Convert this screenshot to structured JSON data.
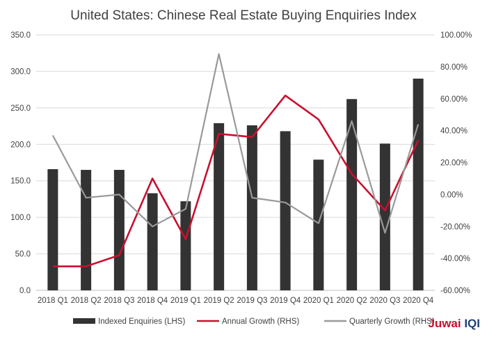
{
  "chart_data": {
    "type": "bar",
    "title": "United States: Chinese Real Estate Buying Enquiries Index",
    "categories": [
      "2018 Q1",
      "2018 Q2",
      "2018 Q3",
      "2018 Q4",
      "2019 Q1",
      "2019 Q2",
      "2019 Q3",
      "2019 Q4",
      "2020 Q1",
      "2020 Q2",
      "2020 Q3",
      "2020 Q4"
    ],
    "series": [
      {
        "name": "Indexed Enquiries (LHS)",
        "type": "bar",
        "axis": "left",
        "color": "#333333",
        "values": [
          166,
          165,
          165,
          133,
          122,
          229,
          226,
          218,
          179,
          262,
          201,
          290
        ]
      },
      {
        "name": "Annual Growth (RHS)",
        "type": "line",
        "axis": "right",
        "color": "#c8102e",
        "values": [
          -45,
          -45,
          -38,
          10,
          -28,
          38,
          36,
          62,
          47,
          13,
          -10,
          34
        ]
      },
      {
        "name": "Quarterly Growth (RHS)",
        "type": "line",
        "axis": "right",
        "color": "#999999",
        "values": [
          37,
          -2,
          0,
          -20,
          -9,
          88,
          -2,
          -5,
          -18,
          46,
          -24,
          44
        ]
      }
    ],
    "left_axis": {
      "ylim": [
        0,
        350
      ],
      "ticks": [
        "0.0",
        "50.0",
        "100.0",
        "150.0",
        "200.0",
        "250.0",
        "300.0",
        "350.0"
      ]
    },
    "right_axis": {
      "ylim": [
        -60,
        100
      ],
      "ticks": [
        "-60.00%",
        "-40.00%",
        "-20.00%",
        "0.00%",
        "20.00%",
        "40.00%",
        "60.00%",
        "80.00%",
        "100.00%"
      ]
    },
    "grid": true,
    "legend_position": "bottom"
  },
  "logo": {
    "text_a": "Juwai ",
    "text_b": "IQI"
  }
}
